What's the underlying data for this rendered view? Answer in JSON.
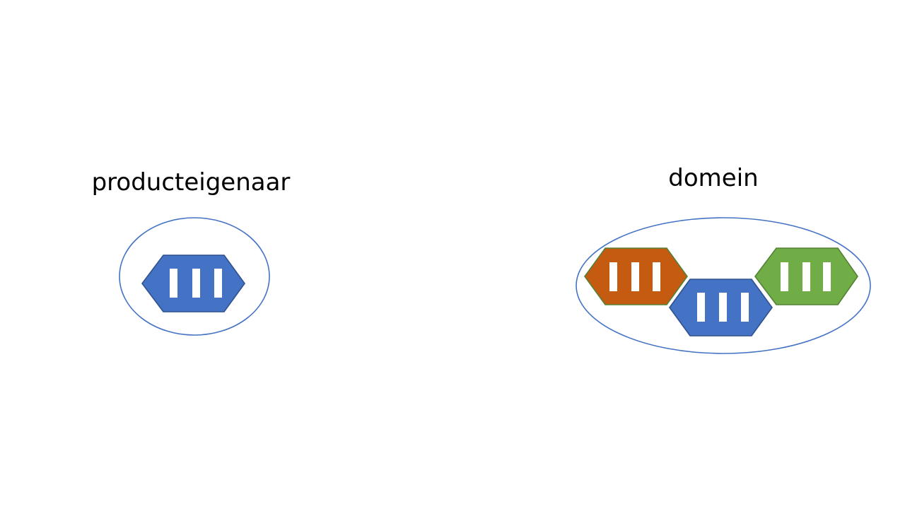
{
  "labels": {
    "left": "producteigenaar",
    "right": "domein"
  },
  "colors": {
    "outline": "#4472C4",
    "blue_module": "#4472C4",
    "blue_module_stroke": "#2F528F",
    "orange_module": "#C55A11",
    "orange_module_stroke": "#538135",
    "green_module": "#70AD47",
    "green_module_stroke": "#538135",
    "bar": "#FFFFFF"
  },
  "modules": {
    "left_group": [
      "blue"
    ],
    "right_group": [
      "orange",
      "blue",
      "green"
    ]
  }
}
